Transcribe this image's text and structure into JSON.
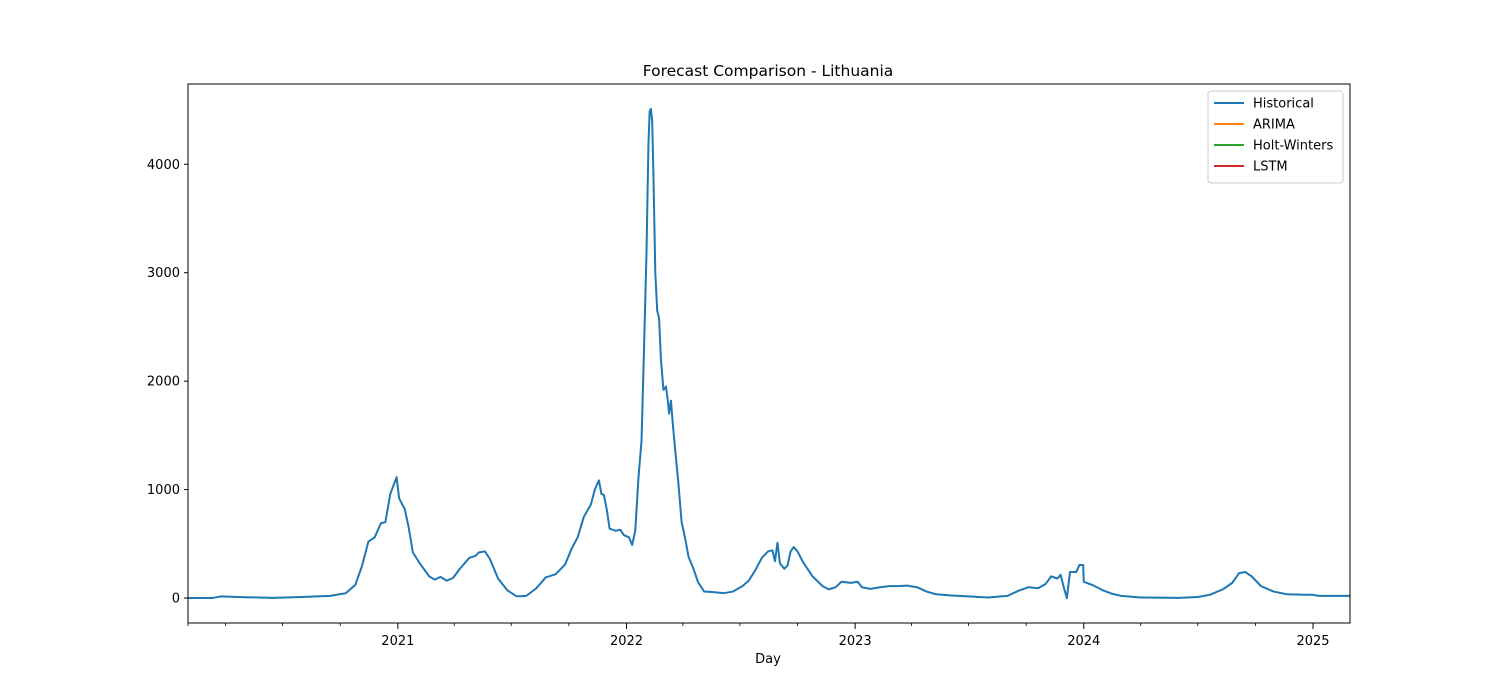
{
  "chart_data": {
    "type": "line",
    "title": "Forecast Comparison - Lithuania",
    "xlabel": "Day",
    "ylabel": "",
    "xlim": [
      "2020-02-01",
      "2025-03-01"
    ],
    "ylim": [
      -230,
      4740
    ],
    "x_ticks": [
      "2021",
      "2022",
      "2023",
      "2024",
      "2025"
    ],
    "y_ticks": [
      "0",
      "1000",
      "2000",
      "3000",
      "4000"
    ],
    "legend": {
      "placement": "top-right"
    },
    "grid": false,
    "series": [
      {
        "name": "Historical",
        "color": "#1f77b4",
        "points": [
          [
            "2020-02-01",
            0
          ],
          [
            "2020-03-10",
            0
          ],
          [
            "2020-03-25",
            15
          ],
          [
            "2020-04-10",
            12
          ],
          [
            "2020-05-01",
            8
          ],
          [
            "2020-06-15",
            2
          ],
          [
            "2020-08-01",
            10
          ],
          [
            "2020-09-15",
            20
          ],
          [
            "2020-10-10",
            45
          ],
          [
            "2020-10-25",
            120
          ],
          [
            "2020-11-05",
            300
          ],
          [
            "2020-11-15",
            520
          ],
          [
            "2020-11-25",
            560
          ],
          [
            "2020-12-05",
            690
          ],
          [
            "2020-12-12",
            700
          ],
          [
            "2020-12-20",
            960
          ],
          [
            "2020-12-30",
            1115
          ],
          [
            "2021-01-03",
            920
          ],
          [
            "2021-01-12",
            820
          ],
          [
            "2021-01-18",
            660
          ],
          [
            "2021-01-25",
            420
          ],
          [
            "2021-02-05",
            320
          ],
          [
            "2021-02-20",
            200
          ],
          [
            "2021-03-01",
            170
          ],
          [
            "2021-03-10",
            195
          ],
          [
            "2021-03-20",
            160
          ],
          [
            "2021-03-30",
            185
          ],
          [
            "2021-04-10",
            270
          ],
          [
            "2021-04-25",
            370
          ],
          [
            "2021-05-05",
            390
          ],
          [
            "2021-05-10",
            420
          ],
          [
            "2021-05-20",
            430
          ],
          [
            "2021-05-28",
            360
          ],
          [
            "2021-06-10",
            180
          ],
          [
            "2021-06-25",
            70
          ],
          [
            "2021-07-10",
            15
          ],
          [
            "2021-07-25",
            20
          ],
          [
            "2021-08-10",
            90
          ],
          [
            "2021-08-25",
            190
          ],
          [
            "2021-09-10",
            220
          ],
          [
            "2021-09-25",
            310
          ],
          [
            "2021-10-05",
            450
          ],
          [
            "2021-10-15",
            560
          ],
          [
            "2021-10-25",
            750
          ],
          [
            "2021-11-05",
            860
          ],
          [
            "2021-11-12",
            1010
          ],
          [
            "2021-11-18",
            1085
          ],
          [
            "2021-11-22",
            960
          ],
          [
            "2021-11-26",
            950
          ],
          [
            "2021-12-01",
            800
          ],
          [
            "2021-12-05",
            640
          ],
          [
            "2021-12-15",
            620
          ],
          [
            "2021-12-22",
            630
          ],
          [
            "2021-12-28",
            580
          ],
          [
            "2022-01-05",
            560
          ],
          [
            "2022-01-10",
            490
          ],
          [
            "2022-01-15",
            620
          ],
          [
            "2022-01-20",
            1100
          ],
          [
            "2022-01-25",
            1450
          ],
          [
            "2022-01-29",
            2300
          ],
          [
            "2022-02-02",
            3200
          ],
          [
            "2022-02-05",
            4180
          ],
          [
            "2022-02-07",
            4490
          ],
          [
            "2022-02-09",
            4510
          ],
          [
            "2022-02-11",
            4400
          ],
          [
            "2022-02-13",
            3900
          ],
          [
            "2022-02-16",
            3000
          ],
          [
            "2022-02-19",
            2650
          ],
          [
            "2022-02-22",
            2580
          ],
          [
            "2022-02-25",
            2200
          ],
          [
            "2022-03-01",
            1920
          ],
          [
            "2022-03-05",
            1950
          ],
          [
            "2022-03-08",
            1820
          ],
          [
            "2022-03-10",
            1700
          ],
          [
            "2022-03-13",
            1820
          ],
          [
            "2022-03-16",
            1600
          ],
          [
            "2022-03-20",
            1350
          ],
          [
            "2022-03-25",
            1050
          ],
          [
            "2022-03-30",
            700
          ],
          [
            "2022-04-05",
            540
          ],
          [
            "2022-04-10",
            380
          ],
          [
            "2022-04-18",
            270
          ],
          [
            "2022-04-25",
            150
          ],
          [
            "2022-05-05",
            60
          ],
          [
            "2022-05-20",
            55
          ],
          [
            "2022-06-05",
            45
          ],
          [
            "2022-06-20",
            60
          ],
          [
            "2022-07-05",
            110
          ],
          [
            "2022-07-15",
            160
          ],
          [
            "2022-07-25",
            250
          ],
          [
            "2022-08-05",
            370
          ],
          [
            "2022-08-15",
            430
          ],
          [
            "2022-08-22",
            440
          ],
          [
            "2022-08-26",
            340
          ],
          [
            "2022-08-30",
            510
          ],
          [
            "2022-09-03",
            320
          ],
          [
            "2022-09-10",
            270
          ],
          [
            "2022-09-15",
            300
          ],
          [
            "2022-09-20",
            430
          ],
          [
            "2022-09-25",
            470
          ],
          [
            "2022-10-01",
            430
          ],
          [
            "2022-10-10",
            330
          ],
          [
            "2022-10-25",
            200
          ],
          [
            "2022-11-10",
            110
          ],
          [
            "2022-11-20",
            80
          ],
          [
            "2022-12-01",
            100
          ],
          [
            "2022-12-10",
            150
          ],
          [
            "2022-12-25",
            140
          ],
          [
            "2023-01-05",
            150
          ],
          [
            "2023-01-12",
            100
          ],
          [
            "2023-01-25",
            85
          ],
          [
            "2023-02-10",
            100
          ],
          [
            "2023-02-25",
            110
          ],
          [
            "2023-03-10",
            110
          ],
          [
            "2023-03-25",
            115
          ],
          [
            "2023-04-10",
            100
          ],
          [
            "2023-04-25",
            60
          ],
          [
            "2023-05-10",
            35
          ],
          [
            "2023-06-01",
            25
          ],
          [
            "2023-07-01",
            15
          ],
          [
            "2023-08-01",
            5
          ],
          [
            "2023-09-01",
            20
          ],
          [
            "2023-09-20",
            70
          ],
          [
            "2023-10-05",
            100
          ],
          [
            "2023-10-20",
            90
          ],
          [
            "2023-11-01",
            130
          ],
          [
            "2023-11-10",
            200
          ],
          [
            "2023-11-20",
            180
          ],
          [
            "2023-11-25",
            215
          ],
          [
            "2023-11-30",
            100
          ],
          [
            "2023-12-05",
            0
          ],
          [
            "2023-12-10",
            240
          ],
          [
            "2023-12-20",
            240
          ],
          [
            "2023-12-25",
            305
          ],
          [
            "2023-12-31",
            305
          ],
          [
            "2024-01-01",
            150
          ],
          [
            "2024-01-15",
            120
          ],
          [
            "2024-02-01",
            70
          ],
          [
            "2024-02-15",
            40
          ],
          [
            "2024-03-01",
            20
          ],
          [
            "2024-04-01",
            5
          ],
          [
            "2024-06-01",
            2
          ],
          [
            "2024-07-01",
            10
          ],
          [
            "2024-07-20",
            30
          ],
          [
            "2024-08-10",
            80
          ],
          [
            "2024-08-25",
            140
          ],
          [
            "2024-09-05",
            230
          ],
          [
            "2024-09-15",
            240
          ],
          [
            "2024-09-25",
            200
          ],
          [
            "2024-10-10",
            110
          ],
          [
            "2024-10-30",
            60
          ],
          [
            "2024-11-20",
            35
          ],
          [
            "2024-12-20",
            30
          ],
          [
            "2025-01-01",
            30
          ],
          [
            "2025-01-10",
            20
          ],
          [
            "2025-02-01",
            20
          ],
          [
            "2025-03-01",
            20
          ]
        ]
      },
      {
        "name": "ARIMA",
        "color": "#ff7f0e",
        "points": []
      },
      {
        "name": "Holt-Winters",
        "color": "#2ca02c",
        "points": []
      },
      {
        "name": "LSTM",
        "color": "#d62728",
        "points": []
      }
    ]
  }
}
